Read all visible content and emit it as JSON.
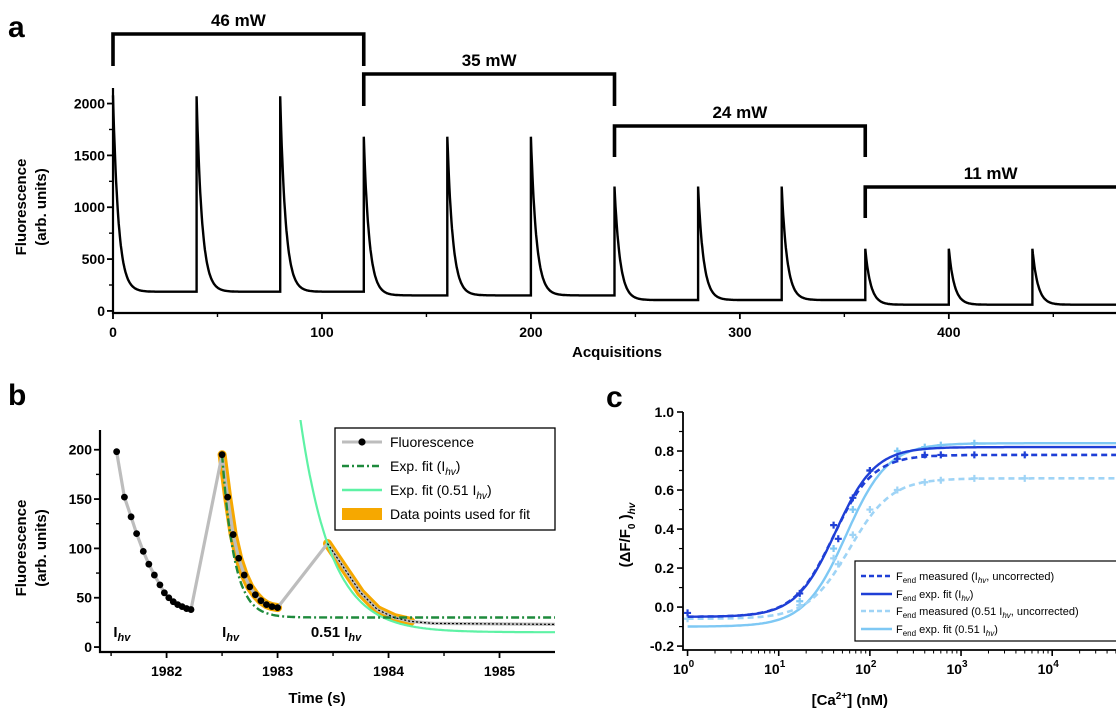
{
  "colors": {
    "black": "#000000",
    "fluor_gray": "#bdbdbd",
    "fit_green": "#1e8a3c",
    "fit_lightgreen": "#5ef2a5",
    "fit_orange": "#f6a800",
    "dark_blue": "#1f3fd6",
    "light_blue": "#7ec8f4",
    "light_blue_dash": "#9fd4f6"
  },
  "chart_data": [
    {
      "panel_label": "a",
      "type": "line",
      "xlabel": "Acquisitions",
      "ylabel_line1": "Fluorescence",
      "ylabel_line2": "(arb. units)",
      "xlim": [
        0,
        480
      ],
      "ylim": [
        -20,
        2150
      ],
      "xticks": [
        0,
        100,
        200,
        300,
        400
      ],
      "xtick_labels": [
        "0",
        "100",
        "200",
        "300",
        "400"
      ],
      "yticks": [
        0,
        500,
        1000,
        1500,
        2000
      ],
      "ytick_labels": [
        "0",
        "500",
        "1000",
        "1500",
        "2000"
      ],
      "power_groups": [
        {
          "label": "46 mW",
          "x_start": 0,
          "x_end": 120
        },
        {
          "label": "35 mW",
          "x_start": 120,
          "x_end": 240
        },
        {
          "label": "24 mW",
          "x_start": 240,
          "x_end": 360
        },
        {
          "label": "11 mW",
          "x_start": 360,
          "x_end": 480
        }
      ],
      "cycles": [
        {
          "start": 0,
          "peak": 2080,
          "base": 185
        },
        {
          "start": 40,
          "peak": 2070,
          "base": 185
        },
        {
          "start": 80,
          "peak": 2070,
          "base": 185
        },
        {
          "start": 120,
          "peak": 1680,
          "base": 150
        },
        {
          "start": 160,
          "peak": 1680,
          "base": 150
        },
        {
          "start": 200,
          "peak": 1680,
          "base": 150
        },
        {
          "start": 240,
          "peak": 1200,
          "base": 105
        },
        {
          "start": 280,
          "peak": 1200,
          "base": 105
        },
        {
          "start": 320,
          "peak": 1200,
          "base": 105
        },
        {
          "start": 360,
          "peak": 600,
          "base": 60
        },
        {
          "start": 400,
          "peak": 600,
          "base": 60
        },
        {
          "start": 440,
          "peak": 600,
          "base": 60
        }
      ]
    },
    {
      "panel_label": "b",
      "type": "line",
      "xlabel": "Time (s)",
      "ylabel_line1": "Fluorescence",
      "ylabel_line2": "(arb. units)",
      "xlim": [
        1981.4,
        1985.5
      ],
      "ylim": [
        -5,
        220
      ],
      "xticks": [
        1982,
        1983,
        1984,
        1985
      ],
      "xtick_labels": [
        "1982",
        "1983",
        "1984",
        "1985"
      ],
      "yticks": [
        0,
        50,
        100,
        150,
        200
      ],
      "ytick_labels": [
        "0",
        "50",
        "100",
        "150",
        "200"
      ],
      "annotations": [
        {
          "text": "I",
          "sub": "hv",
          "x": 1981.52,
          "y": 6
        },
        {
          "text": "I",
          "sub": "hv",
          "x": 1982.5,
          "y": 6
        },
        {
          "text": "0.51 I",
          "sub": "hv",
          "x": 1983.3,
          "y": 6
        }
      ],
      "legend": [
        {
          "key": "fluor",
          "text": "Fluorescence"
        },
        {
          "key": "fit1",
          "text": "Exp. fit (I",
          "sub": "hv",
          "tail": ")"
        },
        {
          "key": "fit2",
          "text": "Exp. fit (0.51 I",
          "sub": "hv",
          "tail": ")"
        },
        {
          "key": "used",
          "text": "Data points used for fit"
        }
      ],
      "fluorescence_points": [
        [
          1981.55,
          198
        ],
        [
          1981.62,
          152
        ],
        [
          1981.68,
          132
        ],
        [
          1981.73,
          115
        ],
        [
          1981.79,
          97
        ],
        [
          1981.84,
          84
        ],
        [
          1981.89,
          73
        ],
        [
          1981.94,
          63
        ],
        [
          1981.98,
          55
        ],
        [
          1982.02,
          50
        ],
        [
          1982.06,
          46
        ],
        [
          1982.1,
          43
        ],
        [
          1982.14,
          41
        ],
        [
          1982.18,
          39
        ],
        [
          1982.22,
          38
        ],
        [
          1982.5,
          195
        ],
        [
          1982.55,
          152
        ],
        [
          1982.6,
          114
        ],
        [
          1982.65,
          90
        ],
        [
          1982.7,
          73
        ],
        [
          1982.75,
          61
        ],
        [
          1982.8,
          53
        ],
        [
          1982.85,
          47
        ],
        [
          1982.9,
          43
        ],
        [
          1982.95,
          41
        ],
        [
          1983.0,
          40
        ]
      ],
      "second_segment": [
        [
          1983.0,
          40
        ],
        [
          1983.45,
          105
        ],
        [
          1983.6,
          80
        ],
        [
          1983.75,
          55
        ],
        [
          1983.9,
          38
        ],
        [
          1984.05,
          30
        ],
        [
          1984.2,
          26
        ],
        [
          1984.4,
          24
        ],
        [
          1985.5,
          23
        ]
      ],
      "fit1": {
        "A": 165,
        "tau": 0.11,
        "t0": 1982.5,
        "C": 30,
        "t_start": 1982.5,
        "t_end": 1985.5
      },
      "fit2": {
        "A": 90,
        "tau": 0.28,
        "t0": 1983.45,
        "C": 15,
        "t_start": 1983.0,
        "t_end": 1985.5
      },
      "used_segments": [
        [
          1982.5,
          1983.0
        ],
        [
          1983.45,
          1984.3
        ]
      ]
    },
    {
      "panel_label": "c",
      "type": "line",
      "xlabel": "[Ca",
      "xlabel_sup": "2+",
      "xlabel_tail": "] (nM)",
      "ylabel": "(ΔF/F",
      "ylabel_sub": "0",
      "ylabel_tail": " )",
      "ylabel_sub2": "hv",
      "xlog": true,
      "xlim_log10": [
        -0.05,
        4.7
      ],
      "ylim": [
        -0.22,
        1.0
      ],
      "xticks_log10": [
        0,
        1,
        2,
        3,
        4
      ],
      "xtick_labels": [
        "10",
        "10",
        "10",
        "10",
        "10"
      ],
      "xtick_exps": [
        "0",
        "1",
        "2",
        "3",
        "4"
      ],
      "yticks": [
        -0.2,
        0.0,
        0.2,
        0.4,
        0.6,
        0.8,
        1.0
      ],
      "ytick_labels": [
        "-0.2",
        "0.0",
        "0.2",
        "0.4",
        "0.6",
        "0.8",
        "1.0"
      ],
      "series": [
        {
          "key": "m1",
          "text": "F",
          "sub": "end",
          "tail": " measured (I",
          "sub2": "hv",
          "tail2": ", uncorrected)",
          "style": "dash",
          "color": "#1f3fd6",
          "bottom": -0.05,
          "top": 0.78,
          "kd": 40,
          "n": 2.0,
          "points": [
            [
              1,
              -0.03
            ],
            [
              17,
              0.07
            ],
            [
              40,
              0.42
            ],
            [
              45,
              0.35
            ],
            [
              65,
              0.56
            ],
            [
              100,
              0.7
            ],
            [
              200,
              0.76
            ],
            [
              400,
              0.78
            ],
            [
              600,
              0.78
            ],
            [
              1400,
              0.78
            ],
            [
              5000,
              0.78
            ]
          ]
        },
        {
          "key": "f1",
          "text": "F",
          "sub": "end",
          "tail": " exp. fit (I",
          "sub2": "hv",
          "tail2": ")",
          "style": "solid",
          "color": "#1f3fd6",
          "bottom": -0.05,
          "top": 0.82,
          "kd": 42,
          "n": 2.0,
          "points": []
        },
        {
          "key": "m2",
          "text": "F",
          "sub": "end",
          "tail": " measured (0.51 I",
          "sub2": "hv",
          "tail2": ", uncorrected)",
          "style": "dash",
          "color": "#9fd4f6",
          "bottom": -0.06,
          "top": 0.66,
          "kd": 60,
          "n": 1.9,
          "points": [
            [
              1,
              -0.06
            ],
            [
              17,
              0.01
            ],
            [
              40,
              0.25
            ],
            [
              45,
              0.22
            ],
            [
              65,
              0.37
            ],
            [
              100,
              0.5
            ],
            [
              200,
              0.6
            ],
            [
              400,
              0.64
            ],
            [
              600,
              0.65
            ],
            [
              1400,
              0.66
            ],
            [
              5000,
              0.66
            ]
          ]
        },
        {
          "key": "f2",
          "text": "F",
          "sub": "end",
          "tail": " exp. fit (0.51 I",
          "sub2": "hv",
          "tail2": ")",
          "style": "solid",
          "color": "#7ec8f4",
          "bottom": -0.1,
          "top": 0.84,
          "kd": 55,
          "n": 1.9,
          "points": [
            [
              17,
              0.03
            ],
            [
              40,
              0.3
            ],
            [
              65,
              0.5
            ],
            [
              100,
              0.7
            ],
            [
              200,
              0.8
            ],
            [
              400,
              0.82
            ],
            [
              600,
              0.83
            ],
            [
              1400,
              0.84
            ]
          ]
        }
      ]
    }
  ]
}
